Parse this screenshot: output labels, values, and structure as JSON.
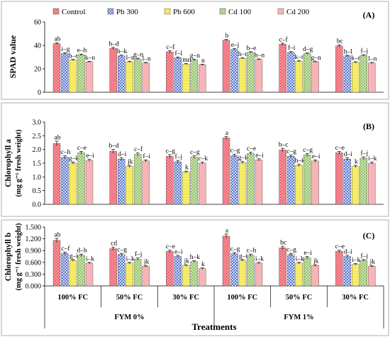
{
  "colors": {
    "Control": "#ee5f6b",
    "Pb 300": "#4f6fd0",
    "Pb 600": "#f7ef6a",
    "Cd 100": "#b8dc8e",
    "Cd 200": "#f6a5a8"
  },
  "legend": [
    "Control",
    "Pb 300",
    "Pb 600",
    "Cd 100",
    "Cd 200"
  ],
  "x_axis": {
    "groups": [
      "100% FC",
      "50% FC",
      "30% FC",
      "100% FC",
      "50% FC",
      "30% FC"
    ],
    "super_groups": [
      "FYM 0%",
      "FYM 1%"
    ],
    "title": "Treatments"
  },
  "chart_data": [
    {
      "type": "bar",
      "panel_label": "(A)",
      "ylabel": "SPAD value",
      "ylim": [
        0,
        60
      ],
      "yticks": [
        0,
        20,
        40,
        60
      ],
      "ytick_labels": [
        "0",
        "20",
        "40",
        "60"
      ],
      "categories": [
        "100% FC",
        "50% FC",
        "30% FC",
        "100% FC",
        "50% FC",
        "30% FC"
      ],
      "series": [
        {
          "name": "Control",
          "values": [
            41.5,
            37.5,
            34.5,
            44.5,
            41.0,
            39.5
          ],
          "errors": [
            0.8,
            0.8,
            0.9,
            0.6,
            0.9,
            1.0
          ],
          "letters": [
            "ab",
            "b–d",
            "c–f",
            "b",
            "c–f",
            "bc"
          ]
        },
        {
          "name": "Pb 300",
          "values": [
            33.0,
            31.0,
            29.5,
            36.5,
            34.0,
            31.0
          ],
          "errors": [
            0.6,
            0.7,
            0.6,
            0.7,
            0.7,
            0.6
          ],
          "letters": [
            "i–g",
            "h–k",
            "f–l",
            "e–j",
            "f–i",
            "h–l"
          ]
        },
        {
          "name": "Pb 600",
          "values": [
            27.5,
            26.0,
            24.0,
            29.0,
            26.5,
            25.5
          ],
          "errors": [
            0.5,
            0.5,
            0.5,
            0.5,
            0.5,
            0.5
          ],
          "letters": [
            "h–n",
            "l–n",
            "mn",
            "h–n",
            "k–n",
            "k–n"
          ]
        },
        {
          "name": "Cd 100",
          "values": [
            32.0,
            28.5,
            27.5,
            34.0,
            33.0,
            31.5
          ],
          "errors": [
            0.6,
            0.6,
            0.6,
            0.6,
            0.6,
            0.6
          ],
          "letters": [
            "e–h",
            "g–n",
            "g–n",
            "b–e",
            "d–g",
            "f–j"
          ]
        },
        {
          "name": "Cd 200",
          "values": [
            26.0,
            25.0,
            23.5,
            28.0,
            26.0,
            25.0
          ],
          "errors": [
            0.5,
            0.5,
            0.5,
            0.5,
            0.5,
            0.5
          ],
          "letters": [
            "k–n",
            "l–n",
            "n",
            "h–n",
            "g–n",
            "l–n"
          ]
        }
      ]
    },
    {
      "type": "bar",
      "panel_label": "(B)",
      "ylabel": "Chlorophyll a",
      "ylabel2": "(mg g⁻¹ fresh weight)",
      "ylim": [
        0,
        3.0
      ],
      "yticks": [
        0,
        0.5,
        1.0,
        1.5,
        2.0,
        2.5,
        3.0
      ],
      "ytick_labels": [
        "0.0",
        "0.5",
        "1.0",
        "1.5",
        "2.0",
        "2.5",
        "3.0"
      ],
      "categories": [
        "100% FC",
        "50% FC",
        "30% FC",
        "100% FC",
        "50% FC",
        "30% FC"
      ],
      "series": [
        {
          "name": "Control",
          "values": [
            2.22,
            1.93,
            1.75,
            2.42,
            1.98,
            1.88
          ],
          "errors": [
            0.08,
            0.07,
            0.06,
            0.05,
            0.06,
            0.05
          ],
          "letters": [
            "ab",
            "b–d",
            "c–g",
            "a",
            "b–c",
            "c–e"
          ]
        },
        {
          "name": "Pb 300",
          "values": [
            1.72,
            1.65,
            1.55,
            1.78,
            1.75,
            1.65
          ],
          "errors": [
            0.05,
            0.05,
            0.05,
            0.05,
            0.05,
            0.05
          ],
          "letters": [
            "c–h",
            "d–i",
            "f–j",
            "c–g",
            "c–g",
            "d–i"
          ]
        },
        {
          "name": "Pb 600",
          "values": [
            1.5,
            1.38,
            1.18,
            1.52,
            1.42,
            1.38
          ],
          "errors": [
            0.04,
            0.04,
            0.03,
            0.04,
            0.04,
            0.04
          ],
          "letters": [
            "g–k",
            "jk",
            "k",
            "g–k",
            "h–k",
            "k"
          ]
        },
        {
          "name": "Cd 100",
          "values": [
            1.88,
            1.82,
            1.72,
            1.85,
            1.8,
            1.68
          ],
          "errors": [
            0.05,
            0.05,
            0.05,
            0.05,
            0.05,
            0.05
          ],
          "letters": [
            "c–e",
            "c–f",
            "c–g",
            "c–e",
            "c–g",
            "f–j"
          ]
        },
        {
          "name": "Cd 200",
          "values": [
            1.6,
            1.58,
            1.5,
            1.62,
            1.58,
            1.5
          ],
          "errors": [
            0.04,
            0.04,
            0.04,
            0.04,
            0.04,
            0.04
          ],
          "letters": [
            "e–i",
            "f–i",
            "c–k",
            "e–i",
            "e–i",
            "i–k"
          ]
        }
      ]
    },
    {
      "type": "bar",
      "panel_label": "(C)",
      "ylabel": "Chlorophyll b",
      "ylabel2": "(mg g⁻¹ fresh weight)",
      "ylim": [
        0,
        1.5
      ],
      "yticks": [
        0,
        0.3,
        0.6,
        0.9,
        1.2,
        1.5
      ],
      "ytick_labels": [
        "0.000",
        "0.300",
        "0.600",
        "0.900",
        "1.200",
        "1.500"
      ],
      "categories": [
        "100% FC",
        "50% FC",
        "30% FC",
        "100% FC",
        "50% FC",
        "30% FC"
      ],
      "series": [
        {
          "name": "Control",
          "values": [
            1.16,
            0.95,
            0.88,
            1.27,
            0.97,
            0.88
          ],
          "errors": [
            0.05,
            0.04,
            0.03,
            0.05,
            0.04,
            0.03
          ],
          "letters": [
            "ab",
            "cd",
            "c–e",
            "a",
            "bc",
            "c–e"
          ]
        },
        {
          "name": "Pb 300",
          "values": [
            0.83,
            0.8,
            0.75,
            0.82,
            0.8,
            0.75
          ],
          "errors": [
            0.03,
            0.03,
            0.03,
            0.03,
            0.03,
            0.03
          ],
          "letters": [
            "c–f",
            "c–g",
            "e–i",
            "c–g",
            "c–g",
            "d–i"
          ]
        },
        {
          "name": "Pb 600",
          "values": [
            0.65,
            0.58,
            0.52,
            0.65,
            0.58,
            0.55
          ],
          "errors": [
            0.02,
            0.02,
            0.02,
            0.02,
            0.02,
            0.02
          ],
          "letters": [
            "g–i",
            "i–k",
            "jk",
            "g–i",
            "i–k",
            "i–k"
          ]
        },
        {
          "name": "Cd 100",
          "values": [
            0.78,
            0.68,
            0.62,
            0.78,
            0.72,
            0.65
          ],
          "errors": [
            0.03,
            0.03,
            0.02,
            0.03,
            0.03,
            0.02
          ],
          "letters": [
            "d–h",
            "f–j",
            "h–k",
            "c–h",
            "e–i",
            "f–j"
          ]
        },
        {
          "name": "Cd 200",
          "values": [
            0.58,
            0.5,
            0.44,
            0.58,
            0.52,
            0.5
          ],
          "errors": [
            0.02,
            0.02,
            0.02,
            0.02,
            0.02,
            0.02
          ],
          "letters": [
            "i–k",
            "jk",
            "k",
            "i–k",
            "jk",
            "jk"
          ]
        }
      ]
    }
  ]
}
